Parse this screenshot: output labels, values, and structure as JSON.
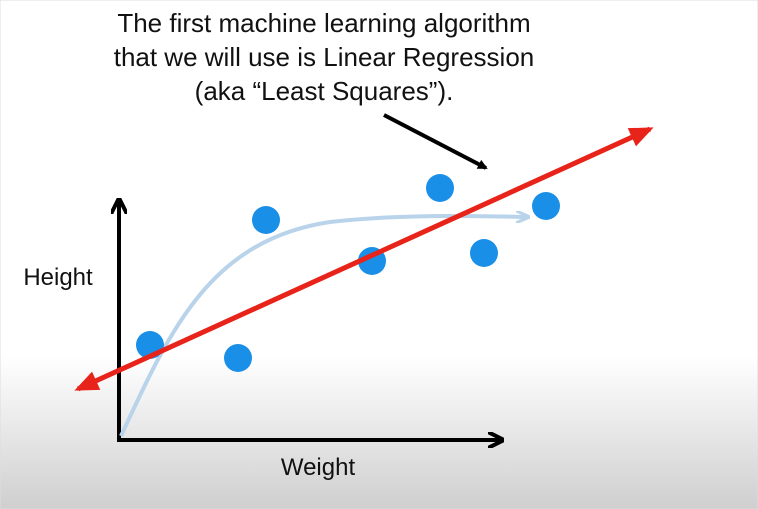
{
  "caption": {
    "lines": [
      "The first machine learning algorithm",
      "that we will use is Linear Regression",
      "(aka “Least Squares”)."
    ]
  },
  "axes": {
    "y_label": "Height",
    "x_label": "Weight"
  }
}
